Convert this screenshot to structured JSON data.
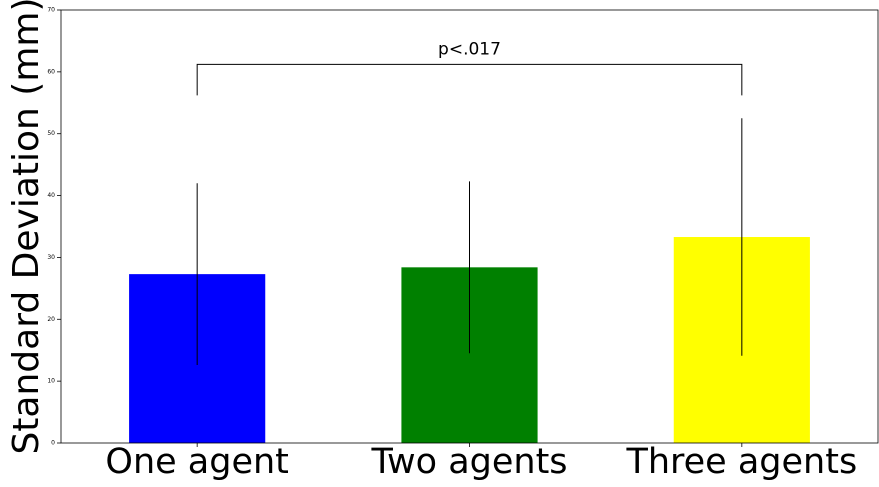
{
  "chart_data": {
    "type": "bar",
    "ylabel": "Standard Deviation (mm)",
    "categories": [
      "One agent",
      "Two agents",
      "Three agents"
    ],
    "values": [
      27.3,
      28.4,
      33.3
    ],
    "errors": [
      14.7,
      13.9,
      19.2
    ],
    "colors": [
      "#0000ff",
      "#008000",
      "#ffff00"
    ],
    "ylim": [
      0,
      70
    ],
    "yticks": [
      0,
      10,
      20,
      30,
      40,
      50,
      60,
      70
    ],
    "annotation": {
      "text": "p<.017",
      "from": 0,
      "to": 2,
      "y": 61.2,
      "y_end": 56.2
    },
    "grid": false
  }
}
